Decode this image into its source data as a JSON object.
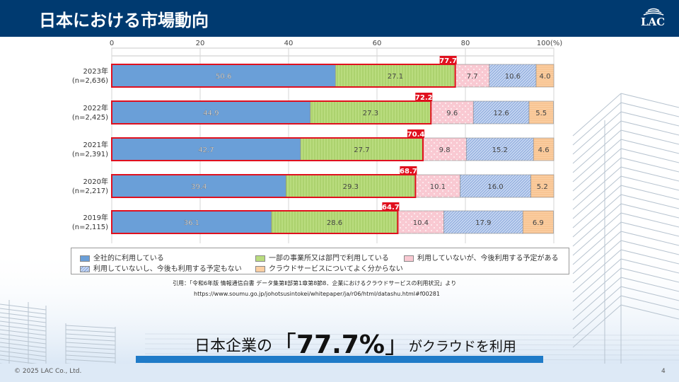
{
  "header": {
    "title": "日本における市場動向",
    "logo_text": "LAC"
  },
  "chart_data": {
    "type": "bar",
    "orientation": "horizontal",
    "stacked": true,
    "xlim": [
      0,
      100
    ],
    "x_ticks": [
      "0",
      "20",
      "40",
      "60",
      "80",
      "100(%)"
    ],
    "categories": [
      {
        "year": "2023年",
        "n": "(n=2,636)"
      },
      {
        "year": "2022年",
        "n": "(n=2,425)"
      },
      {
        "year": "2021年",
        "n": "(n=2,391)"
      },
      {
        "year": "2020年",
        "n": "(n=2,217)"
      },
      {
        "year": "2019年",
        "n": "(n=2,115)"
      }
    ],
    "series": [
      {
        "name": "全社的に利用している",
        "color": "#6a9fd8",
        "pattern": "solid",
        "values": [
          50.6,
          44.9,
          42.7,
          39.4,
          36.1
        ]
      },
      {
        "name": "一部の事業所又は部門で利用している",
        "color": "#b9dc7e",
        "pattern": "vstripe",
        "values": [
          27.1,
          27.3,
          27.7,
          29.3,
          28.6
        ]
      },
      {
        "name": "利用していないが、今後利用する予定がある",
        "color": "#f9c9d2",
        "pattern": "dots",
        "values": [
          7.7,
          9.6,
          9.8,
          10.1,
          10.4
        ]
      },
      {
        "name": "利用していないし、今後も利用する予定もない",
        "color": "#b9cdee",
        "pattern": "diag",
        "values": [
          10.6,
          12.6,
          15.2,
          16.0,
          17.9
        ]
      },
      {
        "name": "クラウドサービスについてよく分からない",
        "color": "#fbcfa3",
        "pattern": "hstripe",
        "values": [
          4.0,
          5.5,
          4.6,
          5.2,
          6.9
        ]
      }
    ],
    "totals_label": [
      "77.7",
      "72.2",
      "70.4",
      "68.7",
      "64.7"
    ],
    "highlight_color": "#e0101e",
    "legend_position": "bottom"
  },
  "citation": {
    "source": "引用：「令和6年版 情報通信白書 データ集第Ⅱ部第1章第8節8．企業におけるクラウドサービスの利用状況」より",
    "url": "https://www.soumu.go.jp/johotsusintokei/whitepaper/ja/r06/html/datashu.html#f00281"
  },
  "headline": {
    "prefix": "日本企業の",
    "open_bracket": "「",
    "value": "77.7%",
    "close_bracket": "」",
    "suffix": "がクラウドを利用"
  },
  "footer": {
    "copyright": "© 2025 LAC Co., Ltd.",
    "page_number": "4"
  }
}
